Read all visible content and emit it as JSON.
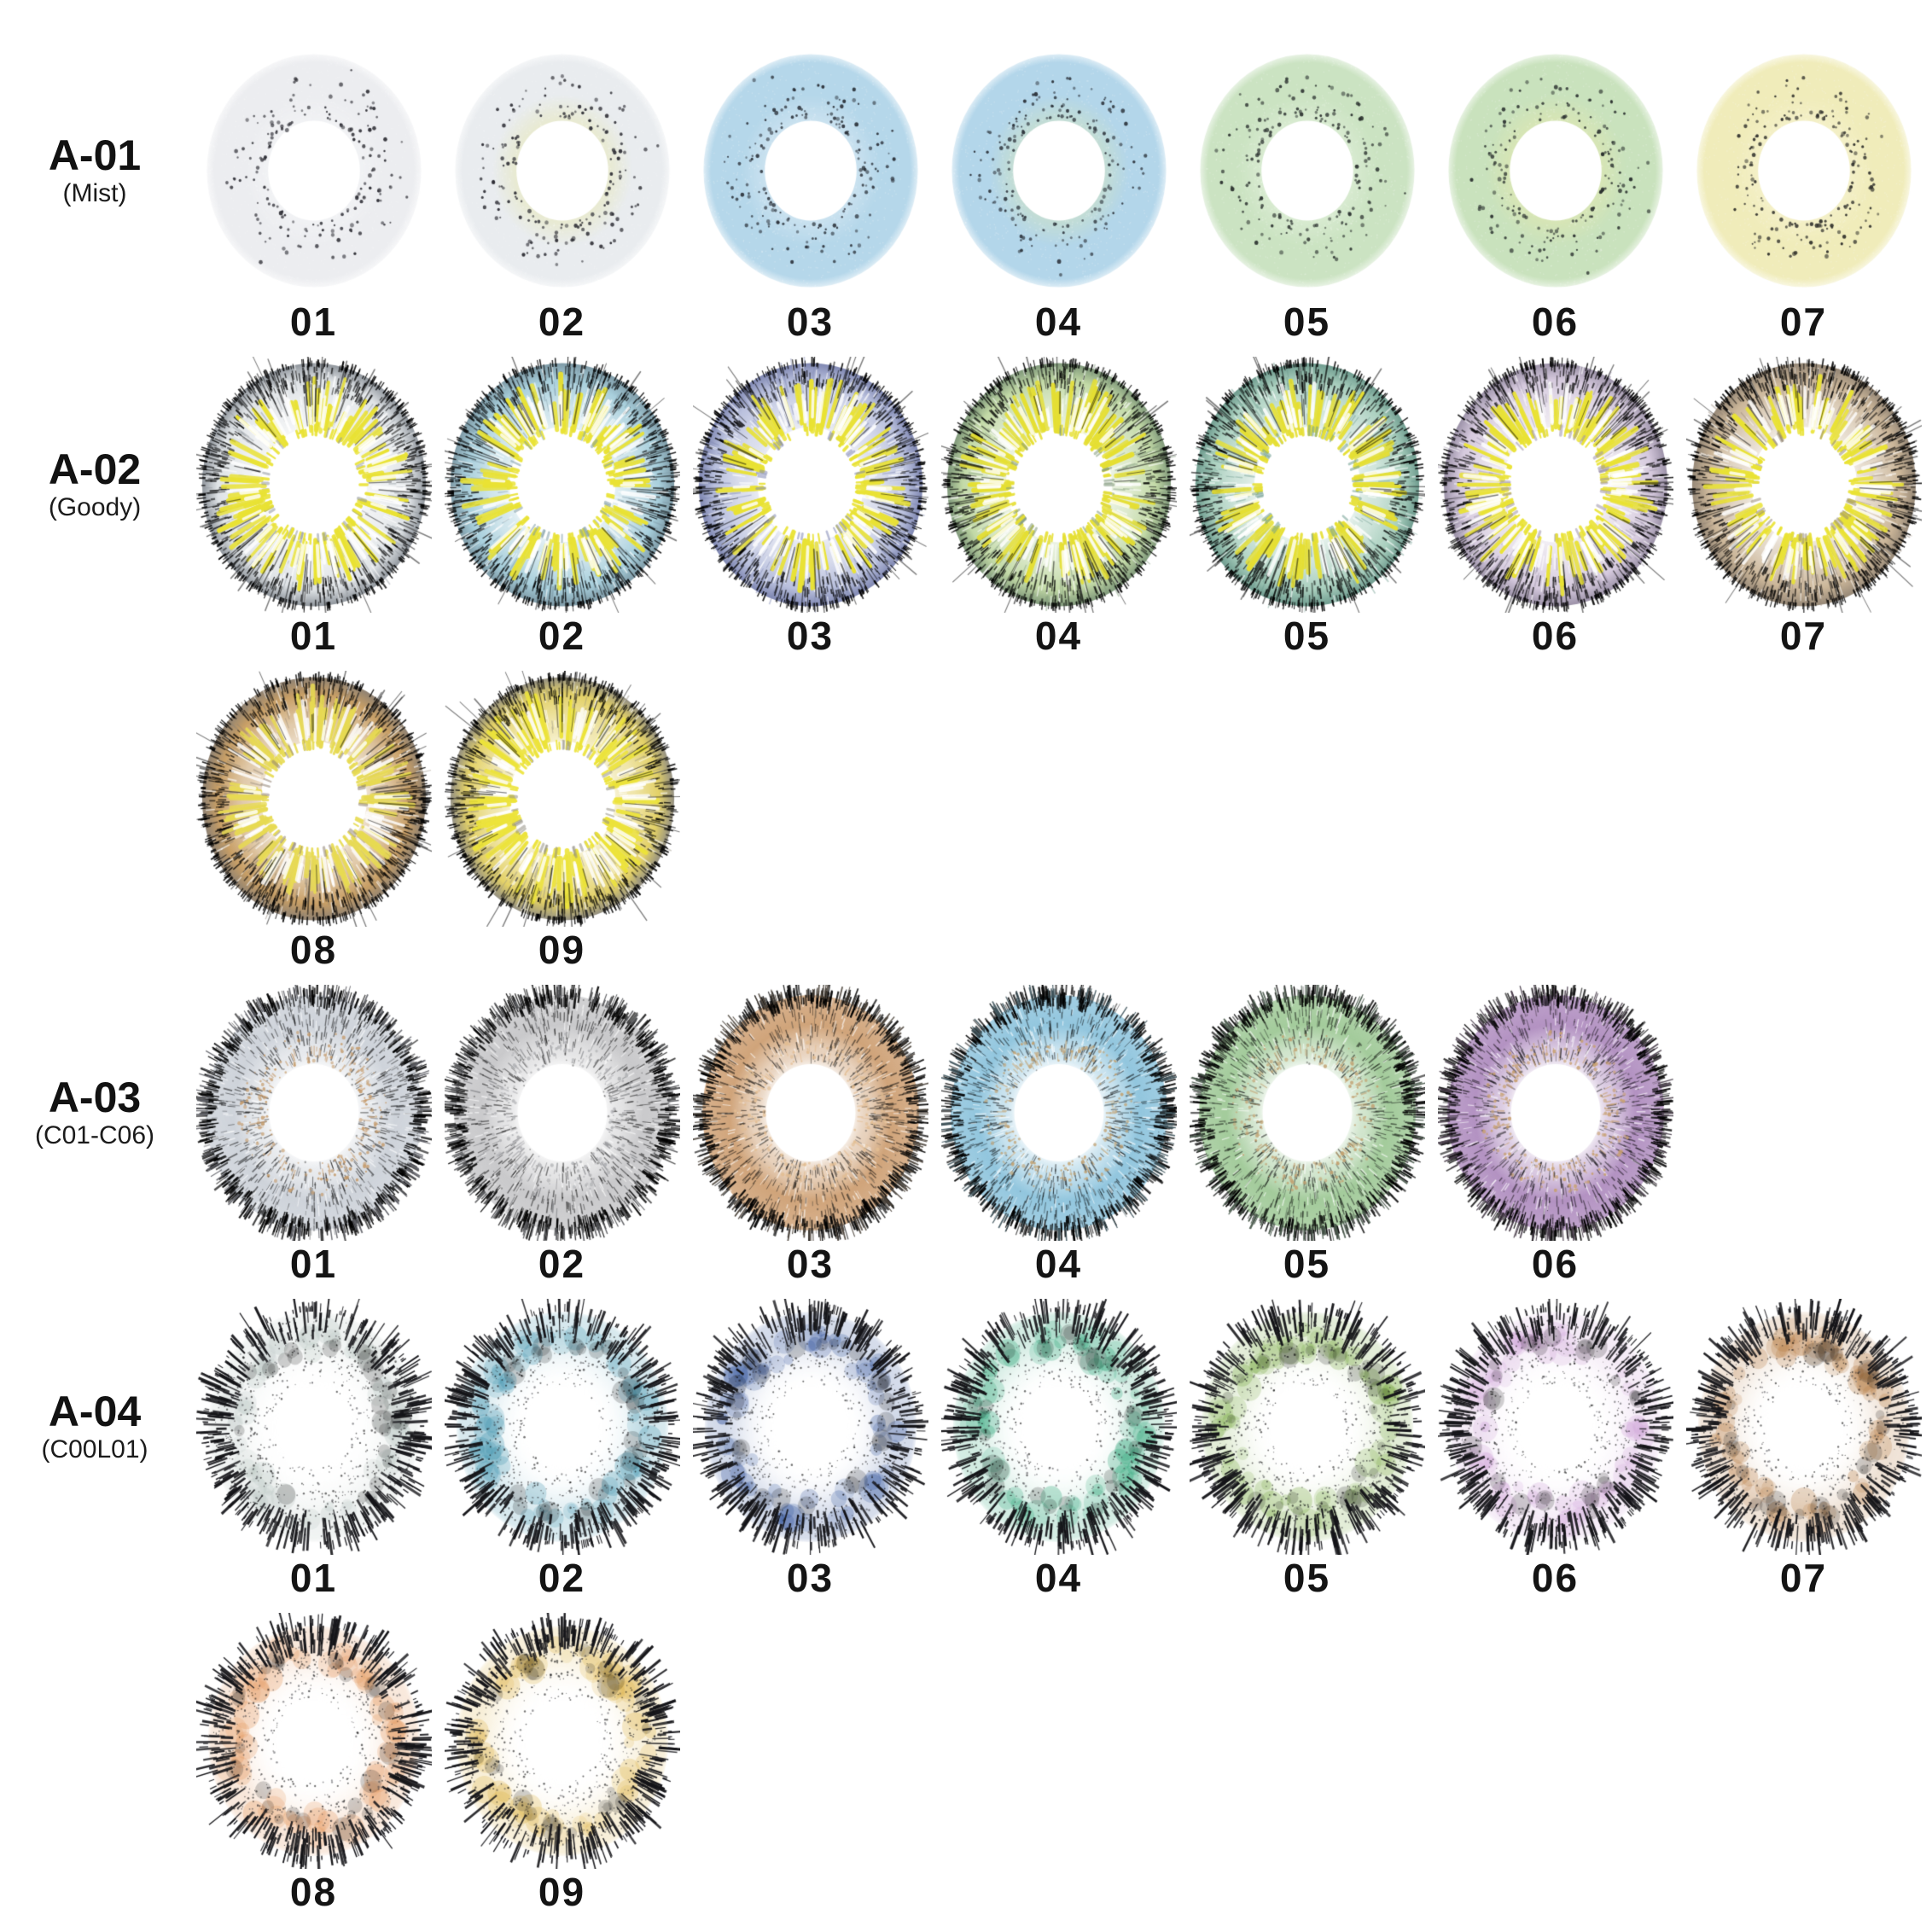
{
  "page": {
    "background": "#ffffff",
    "text_color": "#141414"
  },
  "rows": [
    {
      "code": "A-01",
      "variant": "(Mist)",
      "style": "mist",
      "lenses": [
        {
          "num": "01",
          "outer": "#ecedf0",
          "inner": "#f3f4f6",
          "dot": "#2c2c33"
        },
        {
          "num": "02",
          "outer": "#e9ecef",
          "inner": "#e7e8bd",
          "dot": "#2c2c33"
        },
        {
          "num": "03",
          "outer": "#b5d7ea",
          "inner": "#d3e6f2",
          "dot": "#2a3038"
        },
        {
          "num": "04",
          "outer": "#b3d6ea",
          "inner": "#c9dfc6",
          "dot": "#2a3038"
        },
        {
          "num": "05",
          "outer": "#cbe3c2",
          "inner": "#ddeed6",
          "dot": "#2c3230"
        },
        {
          "num": "06",
          "outer": "#c9e2bd",
          "inner": "#dde6ad",
          "dot": "#2c3230"
        },
        {
          "num": "07",
          "outer": "#f0ecba",
          "inner": "#f5f1cb",
          "dot": "#2e2e2a"
        }
      ]
    },
    {
      "code": "A-02",
      "variant": "(Goody)",
      "style": "goody",
      "lenses": [
        {
          "num": "01",
          "rim": "#8f959c",
          "body": "#dfe3e6",
          "spike": "#e9e234"
        },
        {
          "num": "02",
          "rim": "#7e9aa6",
          "body": "#a8cfdc",
          "spike": "#e9e234"
        },
        {
          "num": "03",
          "rim": "#7f87b2",
          "body": "#b9c0dd",
          "spike": "#e9e234"
        },
        {
          "num": "04",
          "rim": "#7f987a",
          "body": "#c2d9a6",
          "spike": "#e5df33"
        },
        {
          "num": "05",
          "rim": "#6f9c8f",
          "body": "#a9cfbe",
          "spike": "#e5df33"
        },
        {
          "num": "06",
          "rim": "#9c92a8",
          "body": "#d5c9dd",
          "spike": "#e9e234"
        },
        {
          "num": "07",
          "rim": "#968877",
          "body": "#cbb699",
          "spike": "#e9e234"
        },
        {
          "num": "08",
          "rim": "#8f8273",
          "body": "#c89f66",
          "spike": "#e7da52"
        },
        {
          "num": "09",
          "rim": "#949083",
          "body": "#e3d167",
          "spike": "#ece33a"
        }
      ]
    },
    {
      "code": "A-03",
      "variant": "(C01-C06)",
      "style": "fur",
      "lenses": [
        {
          "num": "01",
          "rim": "#5f6167",
          "body": "#ced3da",
          "accent": "#c49a6a"
        },
        {
          "num": "02",
          "rim": "#55565a",
          "body": "#c9c9cb",
          "accent": "#b0b1b4"
        },
        {
          "num": "03",
          "rim": "#4e463d",
          "body": "#d0a47a",
          "accent": "#e2bd92"
        },
        {
          "num": "04",
          "rim": "#3f545c",
          "body": "#92c6de",
          "accent": "#c2a272"
        },
        {
          "num": "05",
          "rim": "#47584a",
          "body": "#a3cb9b",
          "accent": "#c2a272"
        },
        {
          "num": "06",
          "rim": "#473c49",
          "body": "#b392c2",
          "accent": "#c79f6e"
        }
      ]
    },
    {
      "code": "A-04",
      "variant": "(C00L01)",
      "style": "spike",
      "lenses": [
        {
          "num": "01",
          "cloud": "#b9c6c2"
        },
        {
          "num": "02",
          "cloud": "#3f93ad"
        },
        {
          "num": "03",
          "cloud": "#32549b"
        },
        {
          "num": "04",
          "cloud": "#2ba377"
        },
        {
          "num": "05",
          "cloud": "#79a943"
        },
        {
          "num": "06",
          "cloud": "#cfa3d8"
        },
        {
          "num": "07",
          "cloud": "#b5793f"
        },
        {
          "num": "08",
          "cloud": "#e29357"
        },
        {
          "num": "09",
          "cloud": "#ddb44a"
        }
      ]
    }
  ]
}
